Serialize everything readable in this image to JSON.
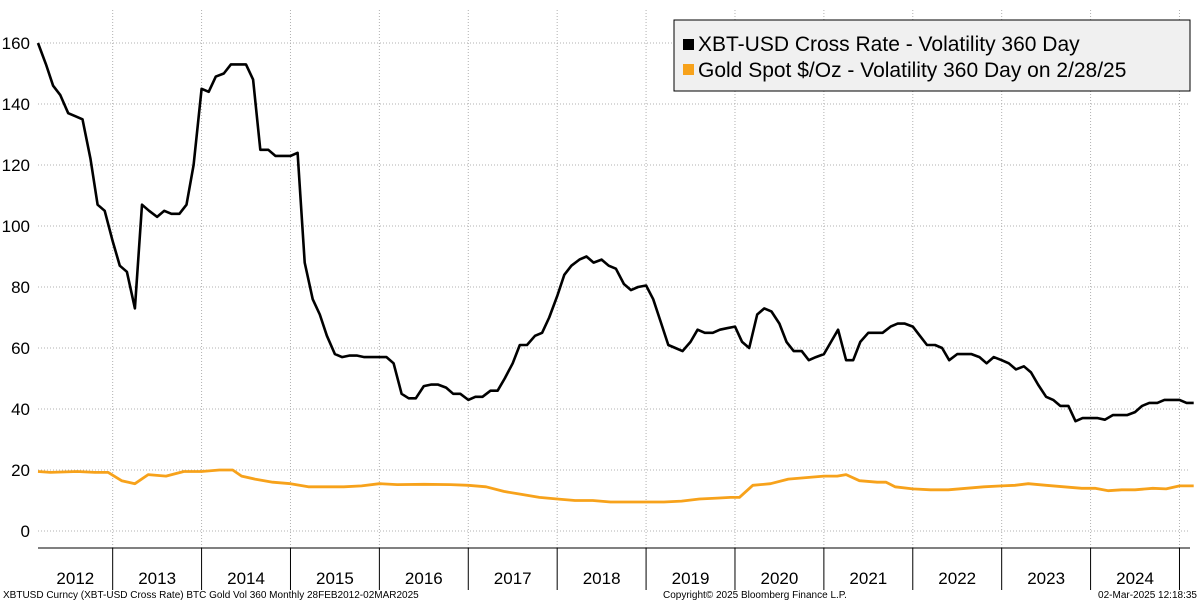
{
  "chart_data": {
    "type": "line",
    "title": "",
    "xlabel": "",
    "ylabel": "",
    "ylim": [
      0,
      170
    ],
    "yticks": [
      "160",
      "140",
      "120",
      "100",
      "80",
      "60",
      "40",
      "20",
      "0"
    ],
    "year_labels": [
      "2012",
      "2013",
      "2014",
      "2015",
      "2016",
      "2017",
      "2018",
      "2019",
      "2020",
      "2021",
      "2022",
      "2023",
      "2024"
    ],
    "grid": true,
    "legend_position": "top-right",
    "series": [
      {
        "name": "XBT-USD Cross Rate - Volatility 360 Day",
        "color": "#000000",
        "x": [
          2012.16,
          2012.25,
          2012.33,
          2012.41,
          2012.5,
          2012.58,
          2012.66,
          2012.75,
          2012.83,
          2012.91,
          2013.0,
          2013.08,
          2013.16,
          2013.25,
          2013.33,
          2013.41,
          2013.5,
          2013.58,
          2013.66,
          2013.75,
          2013.83,
          2013.91,
          2014.0,
          2014.08,
          2014.16,
          2014.25,
          2014.33,
          2014.41,
          2014.5,
          2014.58,
          2014.66,
          2014.75,
          2014.83,
          2014.91,
          2015.0,
          2015.08,
          2015.16,
          2015.25,
          2015.33,
          2015.41,
          2015.5,
          2015.58,
          2015.66,
          2015.75,
          2015.83,
          2015.91,
          2016.0,
          2016.08,
          2016.16,
          2016.25,
          2016.33,
          2016.41,
          2016.5,
          2016.58,
          2016.66,
          2016.75,
          2016.83,
          2016.91,
          2017.0,
          2017.08,
          2017.16,
          2017.25,
          2017.33,
          2017.41,
          2017.5,
          2017.58,
          2017.66,
          2017.75,
          2017.83,
          2017.91,
          2018.0,
          2018.08,
          2018.16,
          2018.25,
          2018.33,
          2018.41,
          2018.5,
          2018.58,
          2018.66,
          2018.75,
          2018.83,
          2018.91,
          2019.0,
          2019.08,
          2019.16,
          2019.25,
          2019.33,
          2019.41,
          2019.5,
          2019.58,
          2019.66,
          2019.75,
          2019.83,
          2019.91,
          2020.0,
          2020.08,
          2020.16,
          2020.25,
          2020.33,
          2020.41,
          2020.5,
          2020.58,
          2020.66,
          2020.75,
          2020.83,
          2020.91,
          2021.0,
          2021.08,
          2021.16,
          2021.25,
          2021.33,
          2021.41,
          2021.5,
          2021.58,
          2021.66,
          2021.75,
          2021.83,
          2021.91,
          2022.0,
          2022.08,
          2022.16,
          2022.25,
          2022.33,
          2022.41,
          2022.5,
          2022.58,
          2022.66,
          2022.75,
          2022.83,
          2022.91,
          2023.0,
          2023.08,
          2023.16,
          2023.25,
          2023.33,
          2023.41,
          2023.5,
          2023.58,
          2023.66,
          2023.75,
          2023.83,
          2023.91,
          2024.0,
          2024.08,
          2024.16,
          2024.25,
          2024.33,
          2024.41,
          2024.5,
          2024.58,
          2024.66,
          2024.75,
          2024.83,
          2024.91,
          2025.0,
          2025.08,
          2025.16
        ],
        "y": [
          160,
          153,
          146,
          143,
          137,
          136,
          135,
          122,
          107,
          105,
          95,
          87,
          85,
          73,
          107,
          105,
          103,
          105,
          104,
          104,
          107,
          120,
          145,
          144,
          149,
          150,
          153,
          153,
          153,
          148,
          125,
          125,
          123,
          123,
          123,
          124,
          88,
          76,
          71,
          64,
          58,
          57,
          57.5,
          57.5,
          57,
          57,
          57,
          57,
          55,
          45,
          43.5,
          43.5,
          47.5,
          48,
          48,
          47,
          45,
          45,
          43,
          44,
          44,
          46,
          46,
          50,
          55,
          61,
          61,
          64,
          65,
          70,
          77,
          84,
          87,
          89,
          90,
          88,
          89,
          87,
          86,
          81,
          79,
          80,
          80.5,
          76,
          69,
          61,
          60,
          59,
          62,
          66,
          65,
          65,
          66,
          66.5,
          67,
          62,
          60,
          71,
          73,
          72,
          68,
          62,
          59,
          59,
          56,
          57,
          58,
          62,
          66,
          56,
          56,
          62,
          65,
          65,
          65,
          67,
          68,
          68,
          67,
          64,
          61,
          61,
          60,
          56,
          58,
          58,
          58,
          57,
          55,
          57,
          56,
          55,
          53,
          54,
          52,
          48,
          44,
          43,
          41,
          41,
          36,
          37,
          37,
          37,
          36.5,
          38,
          38,
          38,
          39,
          41,
          42,
          42,
          43,
          43,
          43,
          42,
          42
        ]
      },
      {
        "name": "Gold Spot $/Oz - Volatility 360 Day on 2/28/25",
        "color": "#f7a21b",
        "x": [
          2012.16,
          2012.3,
          2012.6,
          2012.8,
          2012.95,
          2013.1,
          2013.25,
          2013.4,
          2013.6,
          2013.8,
          2014.0,
          2014.2,
          2014.35,
          2014.45,
          2014.6,
          2014.8,
          2015.0,
          2015.2,
          2015.4,
          2015.6,
          2015.8,
          2016.0,
          2016.2,
          2016.5,
          2016.8,
          2017.0,
          2017.2,
          2017.4,
          2017.6,
          2017.8,
          2018.0,
          2018.2,
          2018.4,
          2018.6,
          2018.8,
          2019.0,
          2019.2,
          2019.4,
          2019.6,
          2019.8,
          2019.95,
          2020.05,
          2020.2,
          2020.4,
          2020.6,
          2020.8,
          2021.0,
          2021.15,
          2021.25,
          2021.4,
          2021.6,
          2021.7,
          2021.8,
          2022.0,
          2022.2,
          2022.4,
          2022.6,
          2022.8,
          2023.0,
          2023.15,
          2023.3,
          2023.5,
          2023.7,
          2023.9,
          2024.05,
          2024.2,
          2024.35,
          2024.5,
          2024.7,
          2024.85,
          2025.0,
          2025.16
        ],
        "y": [
          19.5,
          19.2,
          19.5,
          19.2,
          19.2,
          16.5,
          15.5,
          18.5,
          18,
          19.5,
          19.5,
          20,
          20,
          18,
          17,
          16,
          15.5,
          14.5,
          14.5,
          14.5,
          14.8,
          15.5,
          15.2,
          15.3,
          15.2,
          15,
          14.5,
          13,
          12,
          11,
          10.5,
          10,
          10,
          9.5,
          9.5,
          9.5,
          9.5,
          9.8,
          10.5,
          10.8,
          11,
          11,
          15,
          15.5,
          17,
          17.5,
          18,
          18,
          18.5,
          16.5,
          16,
          16,
          14.5,
          13.8,
          13.5,
          13.5,
          14,
          14.5,
          14.8,
          15,
          15.5,
          15,
          14.5,
          14,
          14,
          13.2,
          13.5,
          13.5,
          14,
          13.8,
          14.8,
          14.8
        ]
      }
    ]
  },
  "footer": {
    "left": "XBTUSD Curncy (XBT-USD Cross Rate) BTC Gold Vol 360  Monthly 28FEB2012-02MAR2025",
    "center": "Copyright© 2025 Bloomberg Finance L.P.",
    "right": "02-Mar-2025 12:18:35"
  }
}
